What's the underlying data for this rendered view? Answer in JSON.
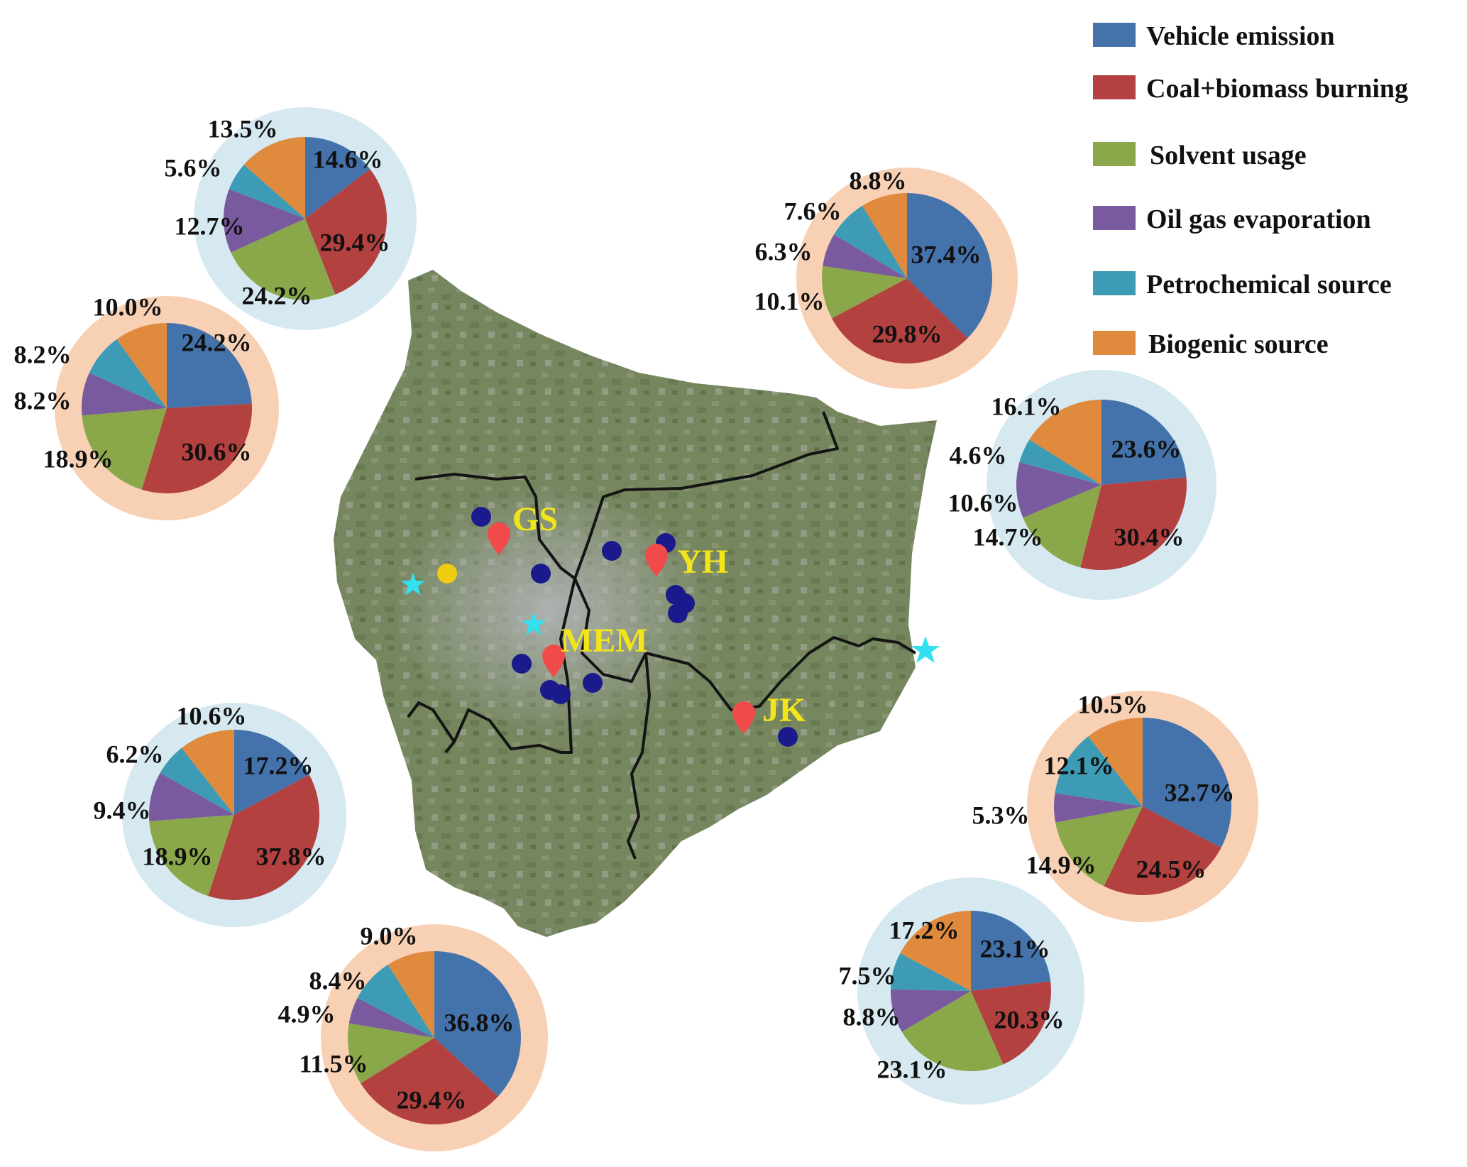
{
  "colors": {
    "vehicle": "#4473ac",
    "coal": "#b3413f",
    "solvent": "#8aa74a",
    "oil": "#7a5a9e",
    "petro": "#3e9bb6",
    "biogenic": "#e08a3d",
    "ring_blue": "#d6e9f1",
    "ring_orange": "#f8d0b4",
    "map_land": "#7d8c6a",
    "boundary": "#141414",
    "site_marker": "#f04a4a",
    "site_label": "#f2e61b",
    "dot": "#1a1a8c",
    "star": "#33e0f0",
    "yellow_dot": "#f0cc10"
  },
  "legend": [
    {
      "key": "vehicle",
      "label": "Vehicle emission"
    },
    {
      "key": "coal",
      "label": "Coal+biomass burning"
    },
    {
      "key": "solvent",
      "label": "Solvent usage"
    },
    {
      "key": "oil",
      "label": "Oil gas evaporation"
    },
    {
      "key": "petro",
      "label": "Petrochemical source"
    },
    {
      "key": "biogenic",
      "label": "Biogenic source"
    }
  ],
  "sites": [
    {
      "label": "GS",
      "icon": "map-pin-icon"
    },
    {
      "label": "YH",
      "icon": "map-pin-icon"
    },
    {
      "label": "MEM",
      "icon": "map-pin-icon"
    },
    {
      "label": "JK",
      "icon": "map-pin-icon"
    }
  ],
  "chart_data": [
    {
      "type": "pie",
      "ring": "ring_blue",
      "categories": [
        "Vehicle emission",
        "Coal+biomass burning",
        "Solvent usage",
        "Oil gas evaporation",
        "Petrochemical source",
        "Biogenic source"
      ],
      "values": [
        14.6,
        29.4,
        24.2,
        12.7,
        5.6,
        13.5
      ],
      "labels": [
        "14.6%",
        "29.4%",
        "24.2%",
        "12.7%",
        "5.6%",
        "13.5%"
      ]
    },
    {
      "type": "pie",
      "ring": "ring_orange",
      "categories": [
        "Vehicle emission",
        "Coal+biomass burning",
        "Solvent usage",
        "Oil gas evaporation",
        "Petrochemical source",
        "Biogenic source"
      ],
      "values": [
        24.2,
        30.6,
        18.9,
        8.2,
        8.2,
        10.0
      ],
      "labels": [
        "24.2%",
        "30.6%",
        "18.9%",
        "8.2%",
        "8.2%",
        "10.0%"
      ]
    },
    {
      "type": "pie",
      "ring": "ring_blue",
      "categories": [
        "Vehicle emission",
        "Coal+biomass burning",
        "Solvent usage",
        "Oil gas evaporation",
        "Petrochemical source",
        "Biogenic source"
      ],
      "values": [
        17.2,
        37.8,
        18.9,
        9.4,
        6.2,
        10.6
      ],
      "labels": [
        "17.2%",
        "37.8%",
        "18.9%",
        "9.4%",
        "6.2%",
        "10.6%"
      ]
    },
    {
      "type": "pie",
      "ring": "ring_orange",
      "categories": [
        "Vehicle emission",
        "Coal+biomass burning",
        "Solvent usage",
        "Oil gas evaporation",
        "Petrochemical source",
        "Biogenic source"
      ],
      "values": [
        36.8,
        29.4,
        11.5,
        4.9,
        8.4,
        9.0
      ],
      "labels": [
        "36.8%",
        "29.4%",
        "11.5%",
        "4.9%",
        "8.4%",
        "9.0%"
      ]
    },
    {
      "type": "pie",
      "ring": "ring_orange",
      "categories": [
        "Vehicle emission",
        "Coal+biomass burning",
        "Solvent usage",
        "Oil gas evaporation",
        "Petrochemical source",
        "Biogenic source"
      ],
      "values": [
        37.4,
        29.8,
        10.1,
        6.3,
        7.6,
        8.8
      ],
      "labels": [
        "37.4%",
        "29.8%",
        "10.1%",
        "6.3%",
        "7.6%",
        "8.8%"
      ]
    },
    {
      "type": "pie",
      "ring": "ring_blue",
      "categories": [
        "Vehicle emission",
        "Coal+biomass burning",
        "Solvent usage",
        "Oil gas evaporation",
        "Petrochemical source",
        "Biogenic source"
      ],
      "values": [
        23.6,
        30.4,
        14.7,
        10.6,
        4.6,
        16.1
      ],
      "labels": [
        "23.6%",
        "30.4%",
        "14.7%",
        "10.6%",
        "4.6%",
        "16.1%"
      ]
    },
    {
      "type": "pie",
      "ring": "ring_orange",
      "categories": [
        "Vehicle emission",
        "Coal+biomass burning",
        "Solvent usage",
        "Oil gas evaporation",
        "Petrochemical source",
        "Biogenic source"
      ],
      "values": [
        32.7,
        24.5,
        14.9,
        5.3,
        12.1,
        10.5
      ],
      "labels": [
        "32.7%",
        "24.5%",
        "14.9%",
        "5.3%",
        "12.1%",
        "10.5%"
      ]
    },
    {
      "type": "pie",
      "ring": "ring_blue",
      "categories": [
        "Vehicle emission",
        "Coal+biomass burning",
        "Solvent usage",
        "Oil gas evaporation",
        "Petrochemical source",
        "Biogenic source"
      ],
      "values": [
        23.1,
        20.3,
        23.1,
        8.8,
        7.5,
        17.2
      ],
      "labels": [
        "23.1%",
        "20.3%",
        "23.1%",
        "8.8%",
        "7.5%",
        "17.2%"
      ]
    }
  ]
}
